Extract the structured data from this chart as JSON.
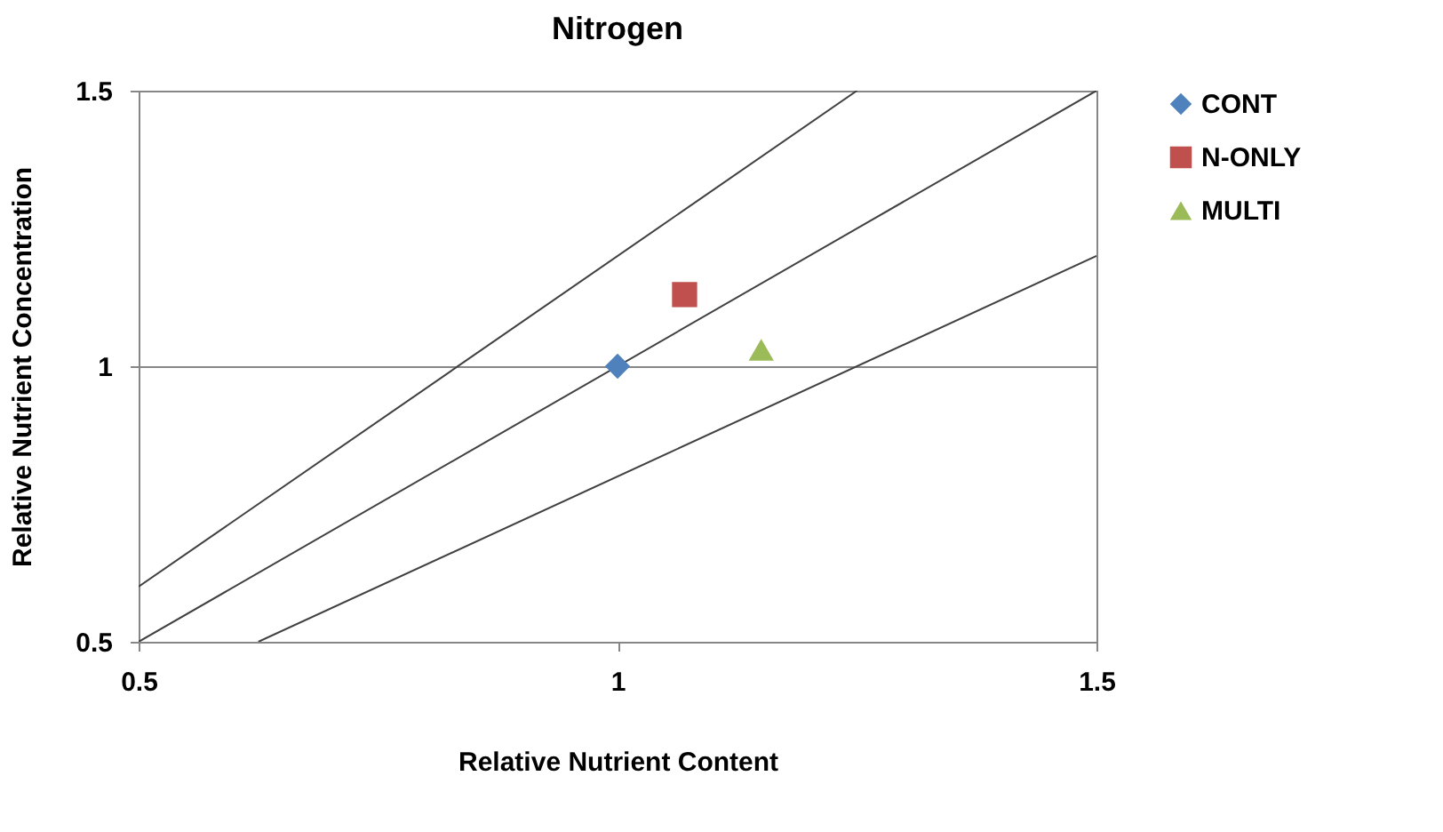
{
  "chart_data": {
    "type": "scatter",
    "title": "Nitrogen",
    "xlabel": "Relative Nutrient Content",
    "ylabel": "Relative Nutrient Concentration",
    "xlim": [
      0.5,
      1.5
    ],
    "ylim": [
      0.5,
      1.5
    ],
    "xticks": [
      0.5,
      1,
      1.5
    ],
    "yticks": [
      0.5,
      1,
      1.5
    ],
    "grid": "y",
    "legend": "right",
    "series": [
      {
        "type": "line",
        "color": "#404040",
        "x": [
          0.5,
          1.25
        ],
        "values": [
          0.6,
          1.5
        ]
      },
      {
        "type": "line",
        "color": "#404040",
        "x": [
          0.5,
          1.5
        ],
        "values": [
          0.5,
          1.5
        ]
      },
      {
        "type": "line",
        "color": "#404040",
        "x": [
          0.625,
          1.5
        ],
        "values": [
          0.5,
          1.2
        ]
      },
      {
        "name": "CONT",
        "color": "#4f81bd",
        "marker": "diamond",
        "x": [
          1
        ],
        "values": [
          1
        ]
      },
      {
        "name": "N-ONLY",
        "color": "#c0504d",
        "marker": "square",
        "x": [
          1.07
        ],
        "values": [
          1.13
        ]
      },
      {
        "name": "MULTI",
        "color": "#9bbb59",
        "marker": "triangle",
        "x": [
          1.15
        ],
        "values": [
          1.03
        ]
      }
    ]
  }
}
